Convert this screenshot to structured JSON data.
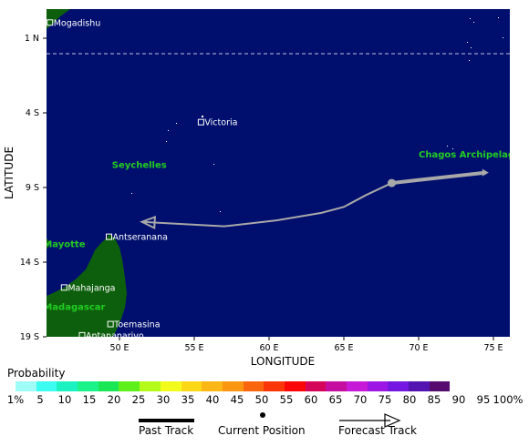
{
  "map": {
    "ocean_color": "#000f6e",
    "land_color": "#0d5f0d",
    "region_color": "#22cc22",
    "track_color": "#a8a8a8",
    "x_axis_title": "LONGITUDE",
    "y_axis_title": "LATITUDE",
    "lon_ticks": [
      "50 E",
      "55 E",
      "60 E",
      "65 E",
      "70 E",
      "75 E"
    ],
    "lat_ticks": [
      "1 N",
      "4 S",
      "9 S",
      "14 S",
      "19 S"
    ],
    "cities": [
      {
        "name": "Mogadishu",
        "lon": 45.35,
        "lat": 2.05
      },
      {
        "name": "Victoria",
        "lon": 55.45,
        "lat": -4.62
      },
      {
        "name": "Antseranana",
        "lon": 49.3,
        "lat": -12.3
      },
      {
        "name": "Mahajanga",
        "lon": 46.3,
        "lat": -15.7
      },
      {
        "name": "Toemasina",
        "lon": 49.4,
        "lat": -18.15
      },
      {
        "name": "Antananarivo",
        "lon": 47.5,
        "lat": -18.9
      }
    ],
    "regions": [
      {
        "name": "Seychelles",
        "lon": 49.5,
        "lat": -7.7
      },
      {
        "name": "Chagos Archipelago",
        "lon": 70.0,
        "lat": -7.0
      },
      {
        "name": "Mayotte",
        "lon": 44.9,
        "lat": -13.0
      },
      {
        "name": "Madagascar",
        "lon": 44.9,
        "lat": -17.2
      }
    ],
    "track": {
      "past": [
        [
          74.5,
          -8.0
        ],
        [
          70.0,
          -8.5
        ],
        [
          68.2,
          -8.7
        ]
      ],
      "current_position": [
        68.2,
        -8.7
      ],
      "forecast": [
        [
          68.2,
          -8.7
        ],
        [
          66.5,
          -9.5
        ],
        [
          65.0,
          -10.3
        ],
        [
          63.5,
          -10.7
        ],
        [
          60.5,
          -11.2
        ],
        [
          57.0,
          -11.6
        ],
        [
          51.5,
          -11.3
        ]
      ]
    }
  },
  "legend": {
    "probability_title": "Probability",
    "swatch_colors": [
      "#9ffcf6",
      "#3dfcf2",
      "#1bf2c2",
      "#1cf28a",
      "#1be653",
      "#5ef01a",
      "#b4fb19",
      "#f2fb1a",
      "#fcd817",
      "#fbb715",
      "#fb9611",
      "#fb650d",
      "#fb370a",
      "#fb0707",
      "#d5065a",
      "#c50ea0",
      "#c719d8",
      "#9d17e4",
      "#7417e0",
      "#5414b2",
      "#560b6e"
    ],
    "percent_labels": [
      "1%",
      "5",
      "10",
      "15",
      "20",
      "25",
      "30",
      "35",
      "40",
      "45",
      "50",
      "55",
      "60",
      "65",
      "70",
      "75",
      "80",
      "85",
      "90",
      "95",
      "100%"
    ],
    "past_track_label": "Past Track",
    "current_position_label": "Current Position",
    "forecast_track_label": "Forecast Track"
  }
}
